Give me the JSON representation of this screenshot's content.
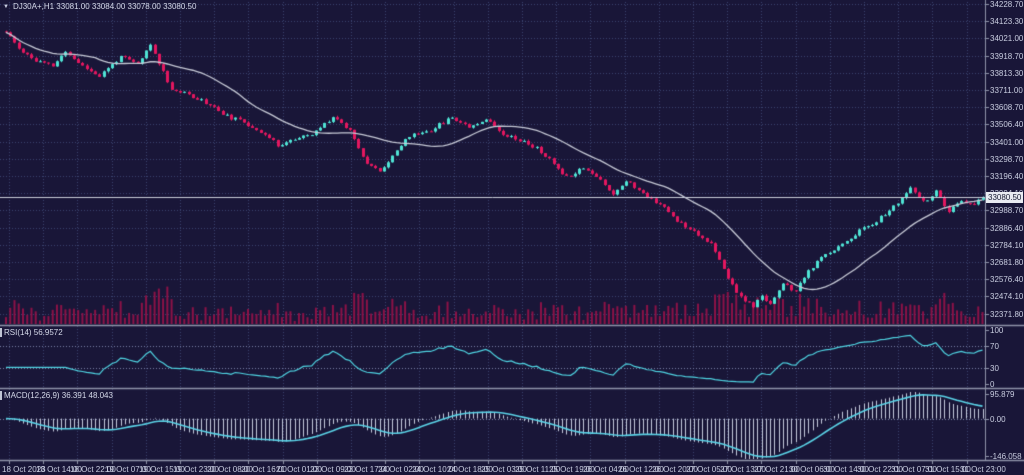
{
  "window": {
    "title": "DJ30A+,H1 33081.00 33084.00 33078.00 33080.50"
  },
  "colors": {
    "background": "#191638",
    "grid": "#3c4370",
    "candle_up": "#4fe3d4",
    "candle_down": "#e3175f",
    "volume": "#8c1247",
    "ma_line": "#c7cad6",
    "rsi_line": "#4fd4e2",
    "macd_signal_line": "#5ad2e6",
    "macd_histogram": "#c6cbdc",
    "indicator_level": "#7b81a8",
    "separator": "#8f93a8",
    "axis_text": "#c9cde0",
    "price_line": "#c9cdd9",
    "price_tag_bg": "#e9ebf2",
    "price_tag_text": "#13162e"
  },
  "chart_data": {
    "type": "candlestick",
    "symbol": "DJ30A+",
    "timeframe": "H1",
    "ohlc": {
      "open": 33081.0,
      "high": 33084.0,
      "low": 33078.0,
      "close": 33080.5
    },
    "current_price": 33080.5,
    "current_price_label": "33080.50",
    "bars_total": 231,
    "price_keypoints": [
      [
        0,
        34060
      ],
      [
        3,
        33965
      ],
      [
        7,
        33890
      ],
      [
        11,
        33860
      ],
      [
        14,
        33945
      ],
      [
        18,
        33860
      ],
      [
        22,
        33800
      ],
      [
        27,
        33915
      ],
      [
        31,
        33870
      ],
      [
        34,
        33985
      ],
      [
        36,
        33880
      ],
      [
        39,
        33720
      ],
      [
        44,
        33680
      ],
      [
        48,
        33630
      ],
      [
        52,
        33560
      ],
      [
        56,
        33525
      ],
      [
        60,
        33470
      ],
      [
        64,
        33390
      ],
      [
        68,
        33425
      ],
      [
        72,
        33450
      ],
      [
        77,
        33560
      ],
      [
        81,
        33480
      ],
      [
        85,
        33280
      ],
      [
        88,
        33230
      ],
      [
        91,
        33330
      ],
      [
        95,
        33445
      ],
      [
        100,
        33480
      ],
      [
        105,
        33555
      ],
      [
        109,
        33500
      ],
      [
        113,
        33545
      ],
      [
        117,
        33460
      ],
      [
        121,
        33420
      ],
      [
        125,
        33370
      ],
      [
        129,
        33280
      ],
      [
        132,
        33200
      ],
      [
        136,
        33260
      ],
      [
        140,
        33180
      ],
      [
        143,
        33100
      ],
      [
        146,
        33180
      ],
      [
        150,
        33100
      ],
      [
        154,
        33040
      ],
      [
        158,
        32940
      ],
      [
        162,
        32880
      ],
      [
        166,
        32800
      ],
      [
        170,
        32600
      ],
      [
        173,
        32480
      ],
      [
        176,
        32430
      ],
      [
        178,
        32490
      ],
      [
        180,
        32450
      ],
      [
        183,
        32560
      ],
      [
        186,
        32520
      ],
      [
        189,
        32640
      ],
      [
        193,
        32740
      ],
      [
        197,
        32800
      ],
      [
        201,
        32880
      ],
      [
        205,
        32940
      ],
      [
        209,
        33020
      ],
      [
        213,
        33130
      ],
      [
        216,
        33050
      ],
      [
        219,
        33110
      ],
      [
        222,
        32990
      ],
      [
        225,
        33060
      ],
      [
        228,
        33030
      ],
      [
        230,
        33080.5
      ]
    ],
    "noise_seed": 11,
    "candle_noise": 11,
    "wick_noise": 9,
    "ma_period": 22,
    "volume": {
      "base": 2,
      "scale": 0.5
    },
    "price_axis": {
      "top_value": 34228.7,
      "step_value": 102.3,
      "labels": [
        "34228.70",
        "34123.30",
        "34021.00",
        "33918.70",
        "33813.30",
        "33711.00",
        "33608.70",
        "33506.40",
        "33401.00",
        "33298.70",
        "33196.40",
        "33094.10",
        "32988.70",
        "32886.40",
        "32784.10",
        "32681.80",
        "32576.40",
        "32474.10",
        "32371.80"
      ]
    },
    "time_axis": {
      "labels": [
        "18 Oct 2023",
        "18 Oct 14:00",
        "18 Oct 22:00",
        "19 Oct 07:00",
        "19 Oct 15:00",
        "19 Oct 23:00",
        "20 Oct 08:00",
        "20 Oct 16:00",
        "21 Oct 01:00",
        "23 Oct 09:00",
        "23 Oct 17:00",
        "24 Oct 02:00",
        "24 Oct 10:00",
        "24 Oct 18:00",
        "25 Oct 03:00",
        "25 Oct 11:00",
        "25 Oct 19:00",
        "26 Oct 04:00",
        "26 Oct 12:00",
        "26 Oct 20:00",
        "27 Oct 05:00",
        "27 Oct 13:00",
        "27 Oct 21:00",
        "30 Oct 06:00",
        "30 Oct 14:00",
        "30 Oct 22:00",
        "31 Oct 07:00",
        "31 Oct 15:00",
        "31 Oct 23:00"
      ]
    },
    "indicators": {
      "rsi": {
        "label": "RSI(14) 56.9572",
        "period": 14,
        "current": 56.9572,
        "levels": [
          70,
          30
        ],
        "axis_labels": [
          "100",
          "70",
          "30",
          "0"
        ],
        "axis_values": [
          100,
          70,
          30,
          0
        ]
      },
      "macd": {
        "label": "MACD(12,26,9) 36.391 48.043",
        "fast": 12,
        "slow": 26,
        "signal": 9,
        "current_macd": 36.391,
        "current_signal": 48.043,
        "axis_labels": [
          "95.879",
          "0.00",
          "-146.058"
        ],
        "axis_values": [
          95.879,
          0,
          -146.058
        ]
      }
    }
  }
}
